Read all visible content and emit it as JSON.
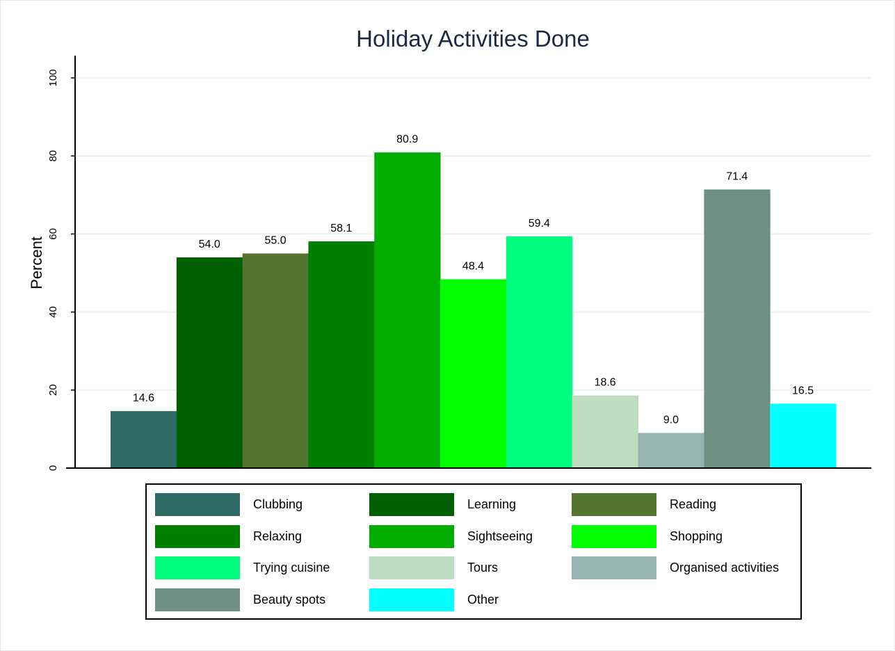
{
  "chart_data": {
    "type": "bar",
    "title": "Holiday Activities Done",
    "xlabel": "",
    "ylabel": "Percent",
    "ylim": [
      0,
      105
    ],
    "yticks": [
      0,
      20,
      40,
      60,
      80,
      100
    ],
    "grid": true,
    "legend_position": "bottom",
    "series": [
      {
        "name": "Clubbing",
        "value": 14.6,
        "label": "14.6",
        "color": "#2e6b66"
      },
      {
        "name": "Learning",
        "value": 54.0,
        "label": "54.0",
        "color": "#005f00"
      },
      {
        "name": "Reading",
        "value": 55.0,
        "label": "55.0",
        "color": "#53752f"
      },
      {
        "name": "Relaxing",
        "value": 58.1,
        "label": "58.1",
        "color": "#007f00"
      },
      {
        "name": "Sightseeing",
        "value": 80.9,
        "label": "80.9",
        "color": "#00ad00"
      },
      {
        "name": "Shopping",
        "value": 48.4,
        "label": "48.4",
        "color": "#00ff00"
      },
      {
        "name": "Trying cuisine",
        "value": 59.4,
        "label": "59.4",
        "color": "#00ff7f"
      },
      {
        "name": "Tours",
        "value": 18.6,
        "label": "18.6",
        "color": "#c0dcc0"
      },
      {
        "name": "Organised activities",
        "value": 9.0,
        "label": "9.0",
        "color": "#98b4b0"
      },
      {
        "name": "Beauty spots",
        "value": 71.4,
        "label": "71.4",
        "color": "#6e8f82"
      },
      {
        "name": "Other",
        "value": 16.5,
        "label": "16.5",
        "color": "#00ffff"
      }
    ]
  }
}
